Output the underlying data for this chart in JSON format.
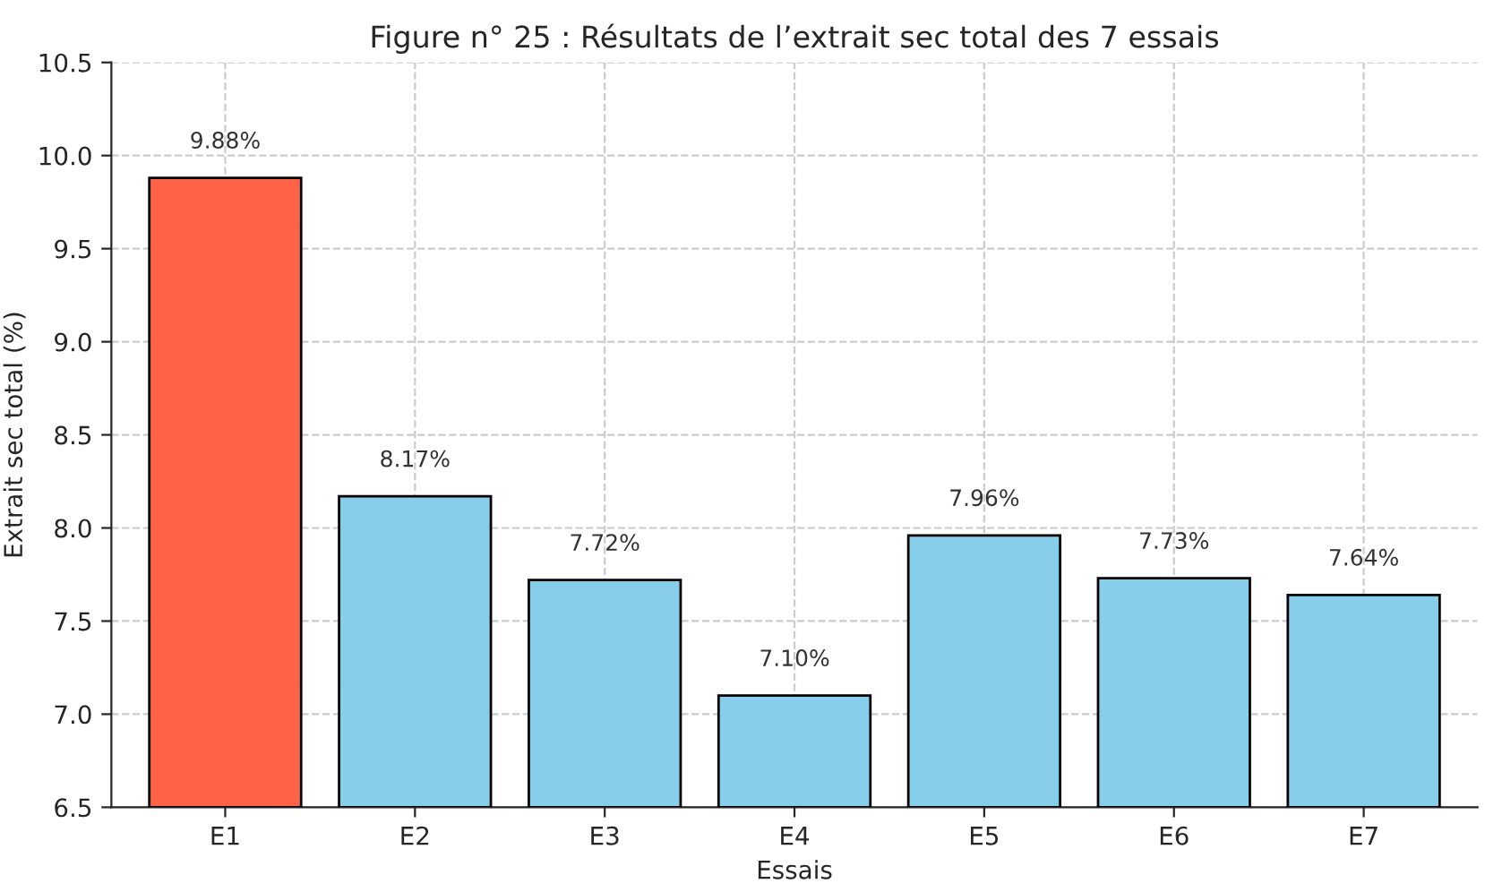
{
  "chart_data": {
    "type": "bar",
    "title": "Figure n° 25 : Résultats de l’extrait sec total des 7 essais",
    "xlabel": "Essais",
    "ylabel": "Extrait sec total (%)",
    "categories": [
      "E1",
      "E2",
      "E3",
      "E4",
      "E5",
      "E6",
      "E7"
    ],
    "values": [
      9.88,
      8.17,
      7.72,
      7.1,
      7.96,
      7.73,
      7.64
    ],
    "colors": [
      "#ff6347",
      "#87ceeb",
      "#87ceeb",
      "#87ceeb",
      "#87ceeb",
      "#87ceeb",
      "#87ceeb"
    ],
    "value_labels": [
      "9.88%",
      "8.17%",
      "7.72%",
      "7.10%",
      "7.96%",
      "7.73%",
      "7.64%"
    ],
    "ylim": [
      6.5,
      10.5
    ],
    "yticks": [
      {
        "value": 6.5,
        "label": "6.5"
      },
      {
        "value": 7.0,
        "label": "7.0"
      },
      {
        "value": 7.5,
        "label": "7.5"
      },
      {
        "value": 8.0,
        "label": "8.0"
      },
      {
        "value": 8.5,
        "label": "8.5"
      },
      {
        "value": 9.0,
        "label": "9.0"
      },
      {
        "value": 9.5,
        "label": "9.5"
      },
      {
        "value": 10.0,
        "label": "10.0"
      },
      {
        "value": 10.5,
        "label": "10.5"
      }
    ],
    "grid": true
  }
}
